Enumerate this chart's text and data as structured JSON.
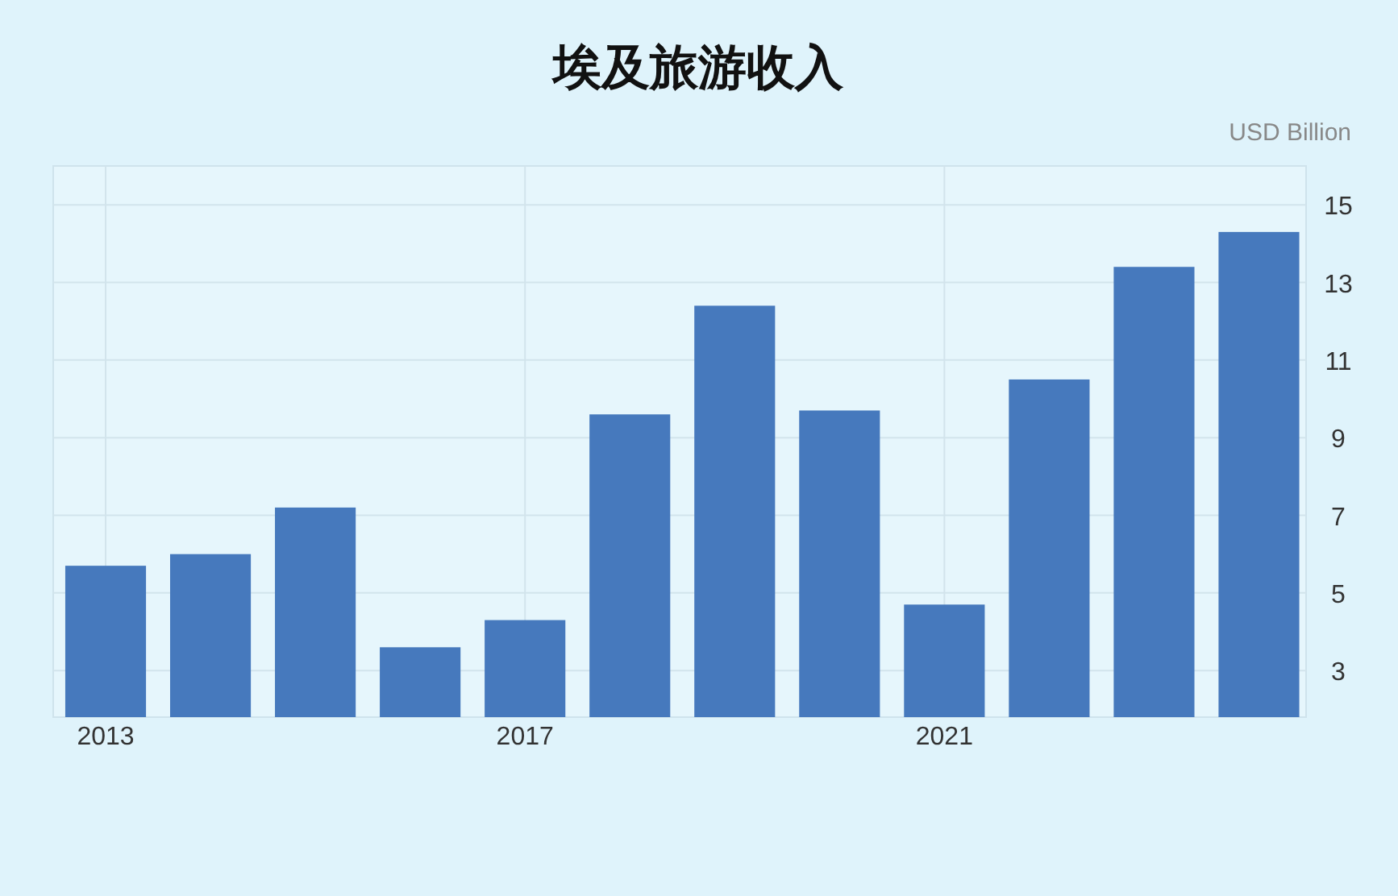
{
  "chart_data": {
    "type": "bar",
    "title": "埃及旅游收入",
    "ylabel": "USD Billion",
    "x": [
      2013,
      2014,
      2015,
      2016,
      2017,
      2018,
      2019,
      2020,
      2021,
      2022,
      2023,
      2024
    ],
    "values": [
      5.7,
      6.0,
      7.2,
      3.6,
      4.3,
      9.6,
      12.4,
      9.7,
      4.7,
      10.5,
      13.4,
      14.3
    ],
    "color": "#4679bd",
    "xlim": [
      2012.5,
      2024.45
    ],
    "xticks": [
      2013,
      2017,
      2021
    ],
    "ylim": [
      1.8,
      16
    ],
    "yticks": [
      3,
      5,
      7,
      9,
      11,
      13,
      15
    ],
    "grid": true
  }
}
